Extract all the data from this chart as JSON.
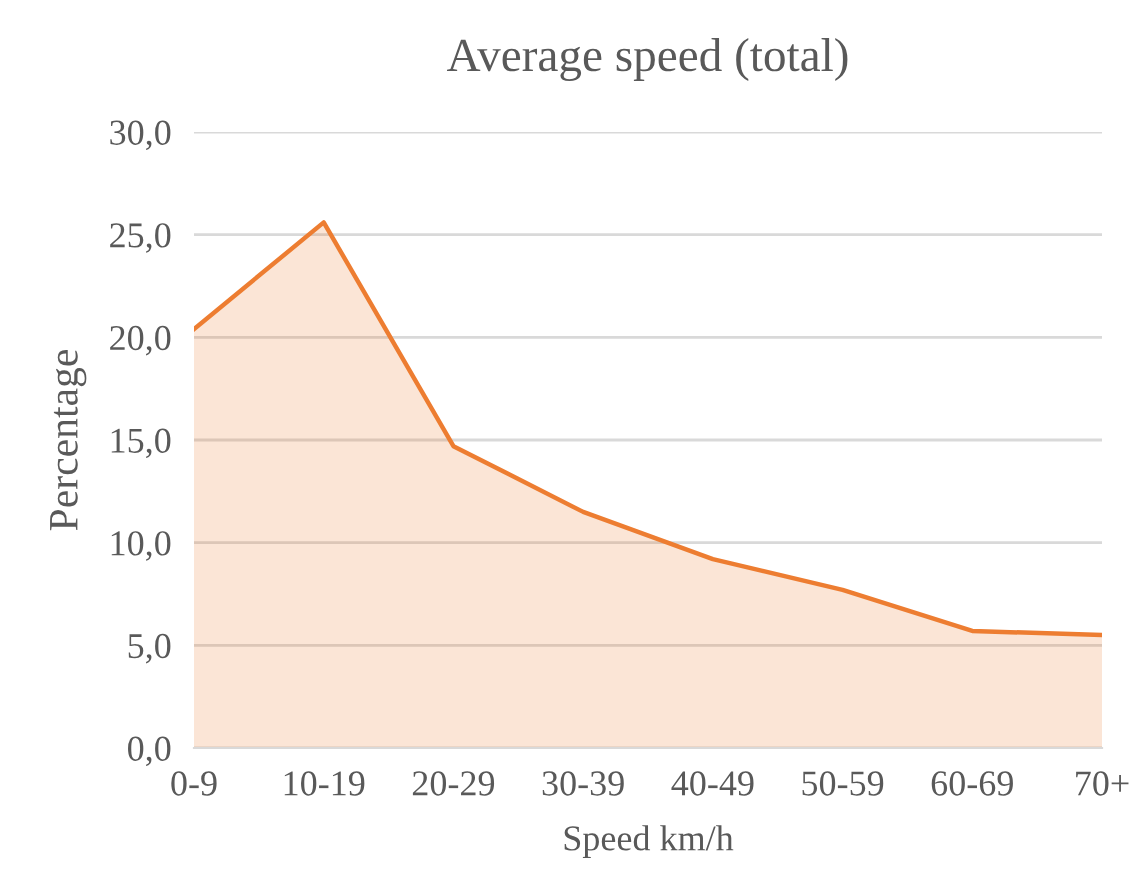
{
  "chart_data": {
    "type": "area",
    "title": "Average speed (total)",
    "xlabel": "Speed km/h",
    "ylabel": "Percentage",
    "categories": [
      "0-9",
      "10-19",
      "20-29",
      "30-39",
      "40-49",
      "50-59",
      "60-69",
      "70+"
    ],
    "series": [
      {
        "color": "#ed7d31",
        "values": [
          20.4,
          25.6,
          14.7,
          11.5,
          9.2,
          7.7,
          5.7,
          5.5
        ]
      }
    ],
    "ylim": [
      0,
      30
    ],
    "yticks": [
      {
        "value": 0,
        "label": "0,0"
      },
      {
        "value": 5,
        "label": "5,0"
      },
      {
        "value": 10,
        "label": "10,0"
      },
      {
        "value": 15,
        "label": "15,0"
      },
      {
        "value": 20,
        "label": "20,0"
      },
      {
        "value": 25,
        "label": "25,0"
      },
      {
        "value": 30,
        "label": "30,0"
      }
    ],
    "grid": "y",
    "legend": false
  }
}
